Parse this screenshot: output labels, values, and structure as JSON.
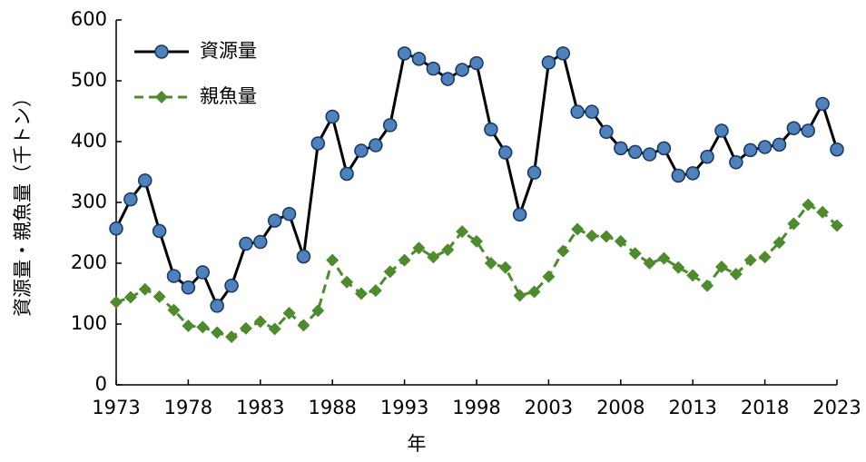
{
  "chart_data": {
    "type": "line",
    "x_label": "年",
    "y_label": "資源量・親魚量（千トン）",
    "x": [
      1973,
      1974,
      1975,
      1976,
      1977,
      1978,
      1979,
      1980,
      1981,
      1982,
      1983,
      1984,
      1985,
      1986,
      1987,
      1988,
      1989,
      1990,
      1991,
      1992,
      1993,
      1994,
      1995,
      1996,
      1997,
      1998,
      1999,
      2000,
      2001,
      2002,
      2003,
      2004,
      2005,
      2006,
      2007,
      2008,
      2009,
      2010,
      2011,
      2012,
      2013,
      2014,
      2015,
      2016,
      2017,
      2018,
      2019,
      2020,
      2021,
      2022,
      2023
    ],
    "series": [
      {
        "name": "資源量",
        "color": "#4a7ebb",
        "values": [
          257,
          305,
          336,
          253,
          179,
          160,
          185,
          130,
          163,
          232,
          235,
          270,
          281,
          211,
          397,
          441,
          347,
          385,
          394,
          427,
          545,
          536,
          520,
          503,
          518,
          529,
          420,
          382,
          280,
          349,
          530,
          545,
          449,
          449,
          416,
          389,
          383,
          379,
          389,
          344,
          348,
          375,
          418,
          366,
          386,
          391,
          395,
          422,
          418,
          462,
          387
        ]
      },
      {
        "name": "親魚量",
        "color": "#4e8a2e",
        "values": [
          136,
          144,
          157,
          145,
          123,
          97,
          95,
          86,
          79,
          93,
          104,
          92,
          118,
          98,
          122,
          205,
          169,
          150,
          155,
          186,
          205,
          225,
          210,
          222,
          252,
          236,
          200,
          193,
          147,
          153,
          178,
          220,
          256,
          245,
          244,
          236,
          216,
          200,
          208,
          193,
          180,
          163,
          194,
          182,
          205,
          210,
          234,
          265,
          296,
          284,
          262
        ]
      }
    ],
    "xlim": [
      1973,
      2023
    ],
    "xticks": [
      1973,
      1978,
      1983,
      1988,
      1993,
      1998,
      2003,
      2008,
      2013,
      2018,
      2023
    ],
    "ylim": [
      0,
      600
    ],
    "yticks": [
      0,
      100,
      200,
      300,
      400,
      500,
      600
    ],
    "legend": "upper-left"
  }
}
